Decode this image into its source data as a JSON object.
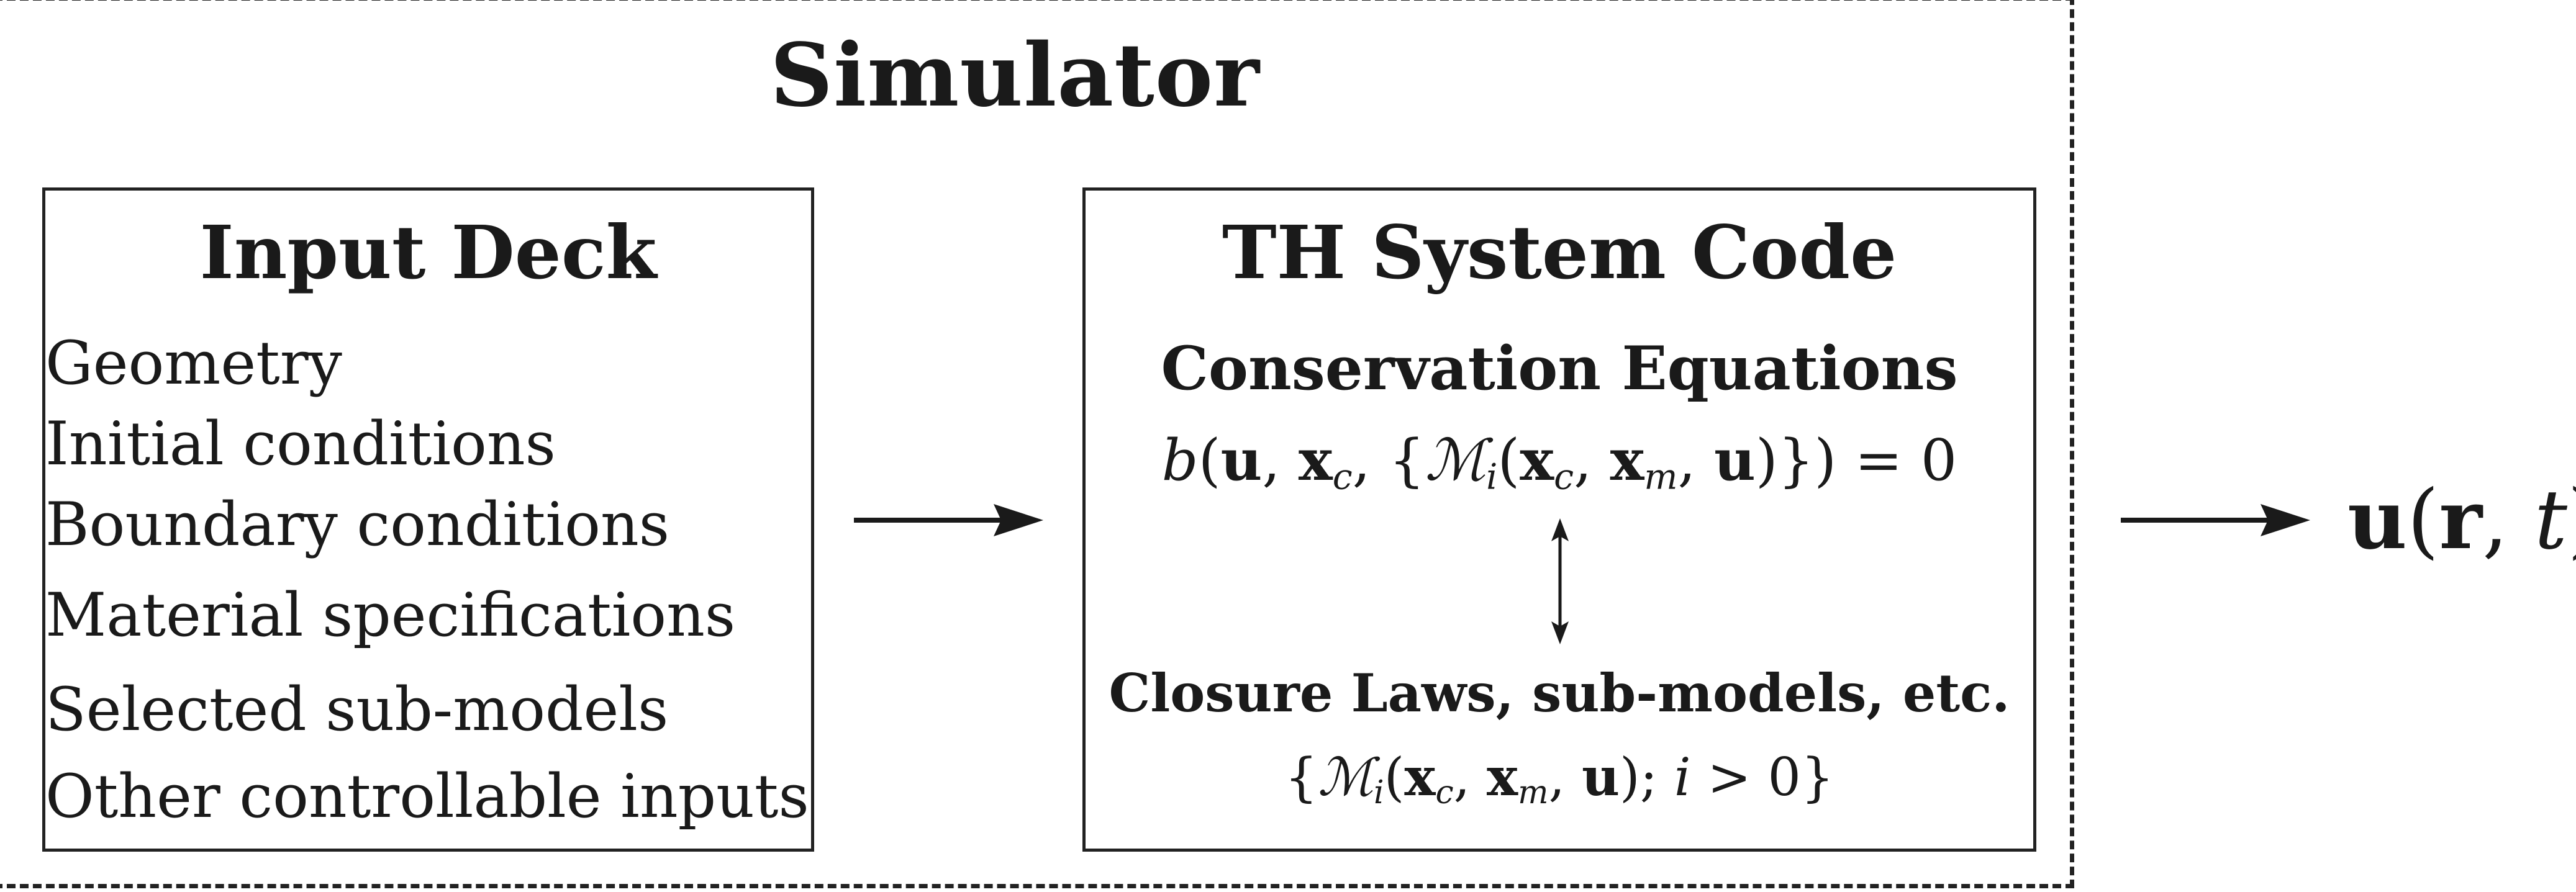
{
  "simulator": {
    "title": "Simulator"
  },
  "input_deck": {
    "title": "Input Deck",
    "items": [
      "Geometry",
      "Initial conditions",
      "Boundary conditions",
      "Material specifications",
      "Selected sub-models",
      "Other controllable inputs"
    ]
  },
  "th_system_code": {
    "title": "TH System Code",
    "conservation_title": "Conservation Equations",
    "conservation_equation": "b(u, x_c, {M_i(x_c, x_m, u)}) = 0",
    "closure_title": "Closure Laws, sub-models, etc.",
    "closure_equation": "{M_i(x_c, x_m, u); i > 0}"
  },
  "output": {
    "variable": "u(r, t)"
  }
}
